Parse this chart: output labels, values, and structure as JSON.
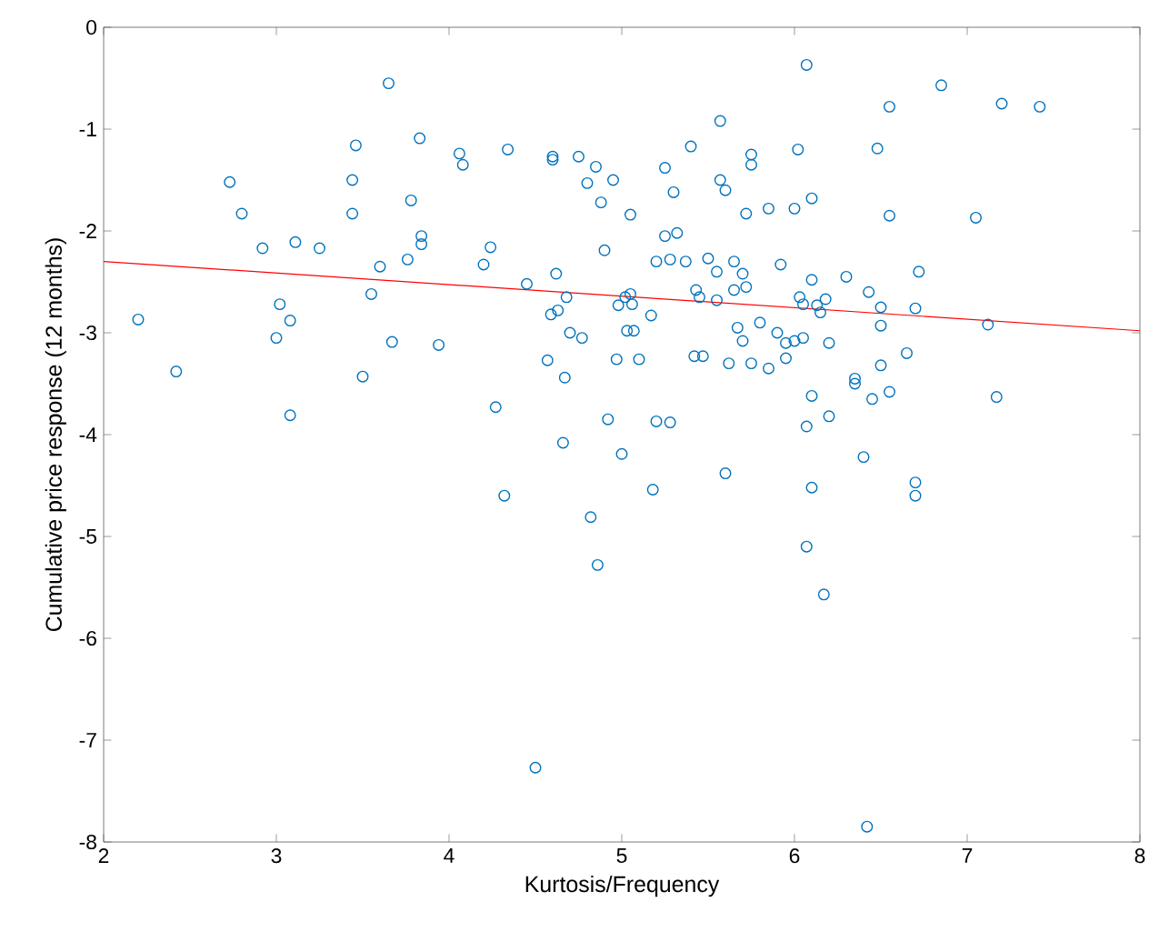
{
  "chart_data": {
    "type": "scatter",
    "xlabel": "Kurtosis/Frequency",
    "ylabel": "Cumulative price response (12 months)",
    "xlim": [
      2,
      8
    ],
    "ylim": [
      -8,
      0
    ],
    "xticks": [
      2,
      3,
      4,
      5,
      6,
      7,
      8
    ],
    "yticks": [
      -8,
      -7,
      -6,
      -5,
      -4,
      -3,
      -2,
      -1,
      0
    ],
    "grid": false,
    "series": [
      {
        "marker": "circle",
        "color": "#0072bd",
        "x": [
          2.2,
          2.42,
          2.73,
          2.8,
          2.92,
          3.0,
          3.02,
          3.08,
          3.08,
          3.11,
          3.25,
          3.44,
          3.44,
          3.46,
          3.5,
          3.55,
          3.6,
          3.65,
          3.67,
          3.76,
          3.78,
          3.83,
          3.84,
          3.84,
          3.94,
          4.06,
          4.08,
          4.2,
          4.24,
          4.27,
          4.32,
          4.34,
          4.45,
          4.5,
          4.57,
          4.59,
          4.6,
          4.6,
          4.62,
          4.63,
          4.66,
          4.67,
          4.68,
          4.7,
          4.75,
          4.77,
          4.8,
          4.82,
          4.85,
          4.86,
          4.88,
          4.9,
          4.92,
          4.95,
          4.98,
          4.97,
          5.0,
          5.02,
          5.03,
          5.05,
          5.05,
          5.07,
          5.06,
          5.1,
          5.17,
          5.18,
          5.2,
          5.2,
          5.25,
          5.25,
          5.28,
          5.28,
          5.3,
          5.32,
          5.37,
          5.4,
          5.42,
          5.43,
          5.47,
          5.45,
          5.5,
          5.55,
          5.55,
          5.57,
          5.57,
          5.6,
          5.6,
          5.62,
          5.65,
          5.65,
          5.67,
          5.7,
          5.7,
          5.72,
          5.72,
          5.75,
          5.75,
          5.75,
          5.8,
          5.85,
          5.85,
          5.9,
          5.92,
          5.95,
          5.95,
          6.0,
          6.0,
          6.02,
          6.03,
          6.05,
          6.05,
          6.07,
          6.07,
          6.07,
          6.1,
          6.1,
          6.1,
          6.1,
          6.13,
          6.15,
          6.18,
          6.17,
          6.2,
          6.2,
          6.3,
          6.35,
          6.35,
          6.4,
          6.42,
          6.43,
          6.45,
          6.48,
          6.5,
          6.5,
          6.5,
          6.55,
          6.55,
          6.55,
          6.65,
          6.7,
          6.7,
          6.7,
          6.72,
          6.85,
          7.05,
          7.12,
          7.17,
          7.2,
          7.42
        ],
        "values": [
          -2.87,
          -3.38,
          -1.52,
          -1.83,
          -2.17,
          -3.05,
          -2.72,
          -2.88,
          -3.81,
          -2.11,
          -2.17,
          -1.5,
          -1.83,
          -1.16,
          -3.43,
          -2.62,
          -2.35,
          -0.55,
          -3.09,
          -2.28,
          -1.7,
          -1.09,
          -2.13,
          -2.05,
          -3.12,
          -1.24,
          -1.35,
          -2.33,
          -2.16,
          -3.73,
          -4.6,
          -1.2,
          -2.52,
          -7.27,
          -3.27,
          -2.82,
          -1.3,
          -1.27,
          -2.42,
          -2.78,
          -4.08,
          -3.44,
          -2.65,
          -3.0,
          -1.27,
          -3.05,
          -1.53,
          -4.81,
          -1.37,
          -5.28,
          -1.72,
          -2.19,
          -3.85,
          -1.5,
          -2.73,
          -3.26,
          -4.19,
          -2.65,
          -2.98,
          -1.84,
          -2.62,
          -2.98,
          -2.72,
          -3.26,
          -2.83,
          -4.54,
          -2.3,
          -3.87,
          -2.05,
          -1.38,
          -2.28,
          -3.88,
          -1.62,
          -2.02,
          -2.3,
          -1.17,
          -3.23,
          -2.58,
          -3.23,
          -2.65,
          -2.27,
          -2.68,
          -2.4,
          -0.92,
          -1.5,
          -1.6,
          -4.38,
          -3.3,
          -2.3,
          -2.58,
          -2.95,
          -3.08,
          -2.42,
          -1.83,
          -2.55,
          -1.25,
          -1.35,
          -3.3,
          -2.9,
          -1.78,
          -3.35,
          -3.0,
          -2.33,
          -3.25,
          -3.1,
          -1.78,
          -3.08,
          -1.2,
          -2.65,
          -2.72,
          -3.05,
          -0.37,
          -3.92,
          -5.1,
          -2.48,
          -1.68,
          -3.62,
          -4.52,
          -2.73,
          -2.8,
          -2.67,
          -5.57,
          -3.1,
          -3.82,
          -2.45,
          -3.45,
          -3.5,
          -4.22,
          -7.85,
          -2.6,
          -3.65,
          -1.19,
          -2.75,
          -2.93,
          -3.32,
          -0.78,
          -1.85,
          -3.58,
          -3.2,
          -2.76,
          -4.6,
          -4.47,
          -2.4,
          -0.57,
          -1.87,
          -2.92,
          -3.63,
          -0.75,
          -0.78
        ]
      },
      {
        "type": "line",
        "marker": "none",
        "line_style": "solid",
        "color": "#ff0000",
        "x": [
          2,
          8
        ],
        "values": [
          -2.3,
          -2.98
        ]
      }
    ]
  }
}
